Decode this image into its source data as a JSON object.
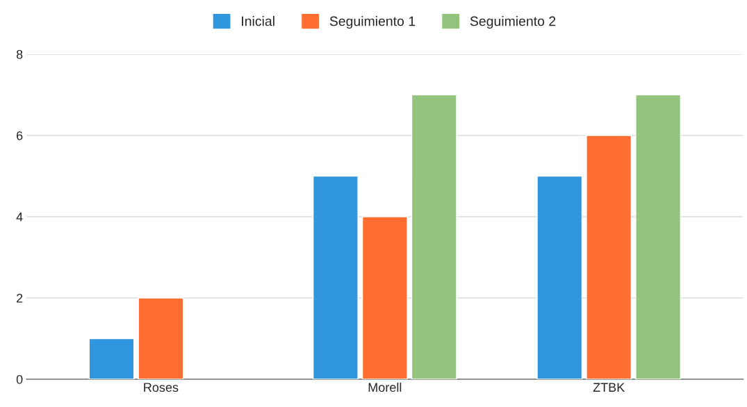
{
  "chart_data": {
    "type": "bar",
    "categories": [
      "Roses",
      "Morell",
      "ZTBK"
    ],
    "series": [
      {
        "name": "Inicial",
        "color": "#3096de",
        "values": [
          1,
          5,
          5
        ]
      },
      {
        "name": "Seguimiento 1",
        "color": "#ff6d31",
        "values": [
          2,
          4,
          6
        ]
      },
      {
        "name": "Seguimiento 2",
        "color": "#93c47d",
        "values": [
          null,
          7,
          7
        ]
      }
    ],
    "ylim": [
      0,
      8
    ],
    "yticks": [
      0,
      2,
      4,
      6,
      8
    ],
    "grid": "y",
    "legend": "top"
  }
}
